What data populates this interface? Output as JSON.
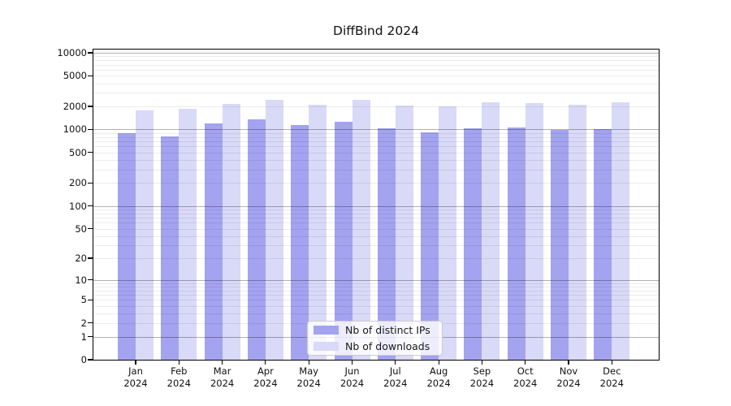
{
  "chart_data": {
    "type": "bar",
    "title": "DiffBind 2024",
    "categories": [
      "Jan 2024",
      "Feb 2024",
      "Mar 2024",
      "Apr 2024",
      "May 2024",
      "Jun 2024",
      "Jul 2024",
      "Aug 2024",
      "Sep 2024",
      "Oct 2024",
      "Nov 2024",
      "Dec 2024"
    ],
    "series": [
      {
        "name": "Nb of distinct IPs",
        "color": "#a3a3f0",
        "values": [
          890,
          820,
          1190,
          1350,
          1150,
          1260,
          1030,
          920,
          1040,
          1060,
          980,
          1020
        ]
      },
      {
        "name": "Nb of downloads",
        "color": "#d9d9f8",
        "values": [
          1780,
          1860,
          2150,
          2430,
          2120,
          2420,
          2040,
          2000,
          2240,
          2210,
          2100,
          2280
        ]
      }
    ],
    "xlabel": "",
    "ylabel": "",
    "y_scale": "log10(value+1)",
    "y_ticks": [
      0,
      1,
      2,
      5,
      10,
      20,
      50,
      100,
      200,
      500,
      1000,
      2000,
      5000,
      10000
    ],
    "ylim": [
      0,
      11000
    ],
    "grid": "major and minor horizontal gridlines, drawn over bars",
    "legend_position": "bottom-center inside plot",
    "colors": {
      "axis": "#000000",
      "major_grid": "#aaaaaa",
      "minor_grid": "#ececec",
      "legend_border": "#cccccc",
      "background": "#ffffff"
    }
  }
}
